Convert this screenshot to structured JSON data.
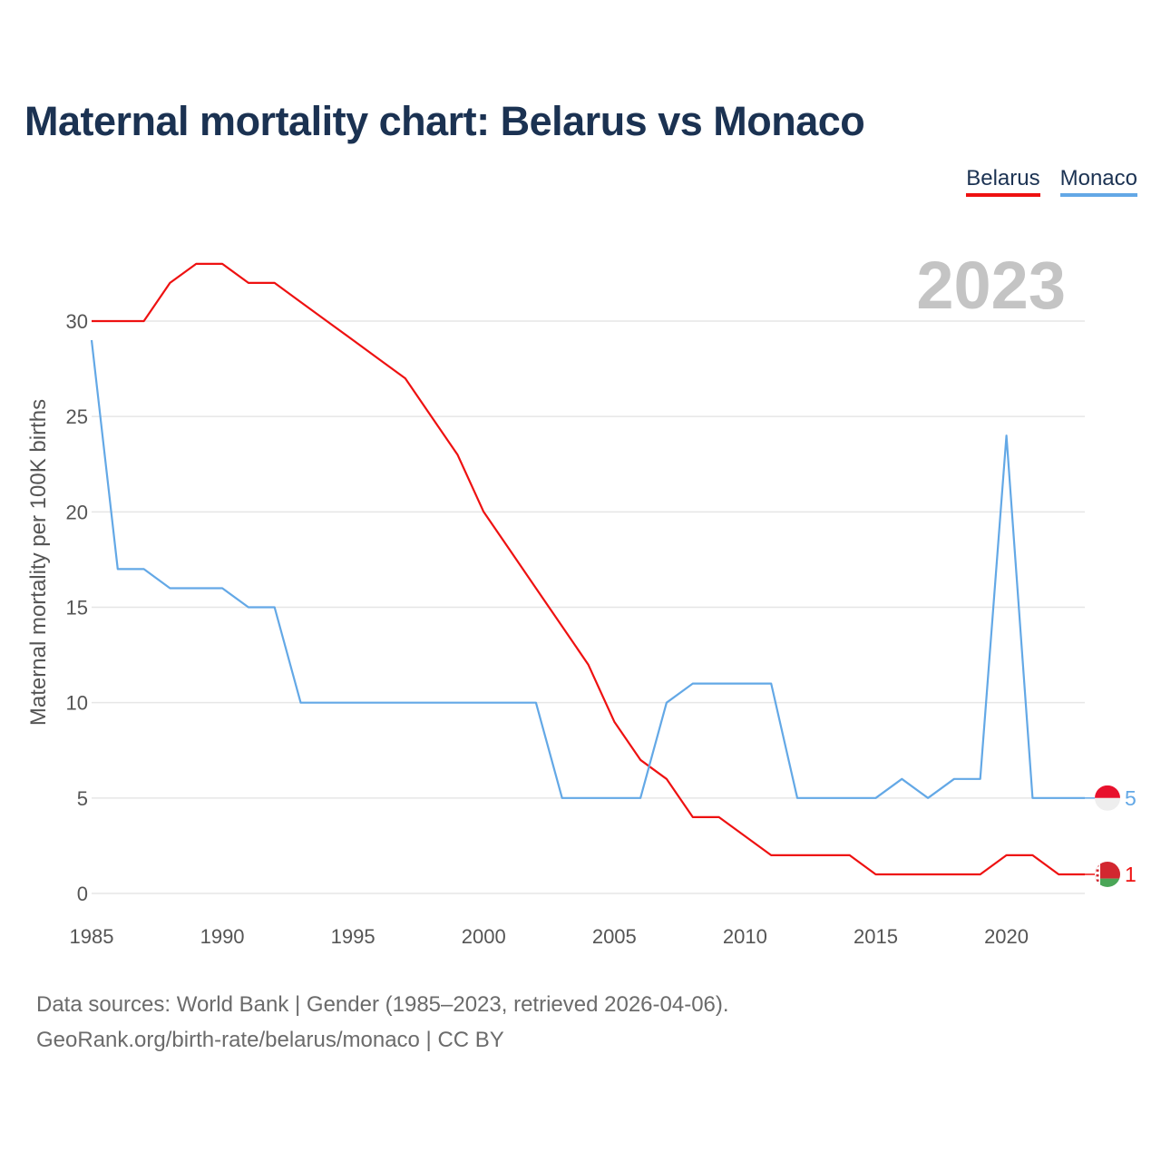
{
  "title": "Maternal mortality chart: Belarus vs Monaco",
  "legend": [
    {
      "label": "Belarus",
      "color": "#ee1111"
    },
    {
      "label": "Monaco",
      "color": "#63a8e6"
    }
  ],
  "year_watermark": "2023",
  "source": {
    "line1": "Data sources: World Bank | Gender (1985–2023, retrieved 2026-04-06).",
    "line2": "GeoRank.org/birth-rate/belarus/monaco | CC BY"
  },
  "chart_data": {
    "type": "line",
    "title": "Maternal mortality chart: Belarus vs Monaco",
    "xlabel": "",
    "ylabel": "Maternal mortality per 100K births",
    "xlim": [
      1985,
      2023
    ],
    "ylim": [
      0,
      30
    ],
    "grid": true,
    "legend_position": "top-right",
    "x_ticks": [
      1985,
      1990,
      1995,
      2000,
      2005,
      2010,
      2015,
      2020
    ],
    "y_ticks": [
      0,
      5,
      10,
      15,
      20,
      25,
      30
    ],
    "x": [
      1985,
      1986,
      1987,
      1988,
      1989,
      1990,
      1991,
      1992,
      1993,
      1994,
      1995,
      1996,
      1997,
      1998,
      1999,
      2000,
      2001,
      2002,
      2003,
      2004,
      2005,
      2006,
      2007,
      2008,
      2009,
      2010,
      2011,
      2012,
      2013,
      2014,
      2015,
      2016,
      2017,
      2018,
      2019,
      2020,
      2021,
      2022,
      2023
    ],
    "series": [
      {
        "name": "Belarus",
        "color": "#ee1111",
        "end_label": "1",
        "flag": "belarus",
        "values": [
          30,
          30,
          30,
          32,
          33,
          33,
          32,
          32,
          31,
          30,
          29,
          28,
          27,
          25,
          23,
          20,
          18,
          16,
          14,
          12,
          9,
          7,
          6,
          4,
          4,
          3,
          2,
          2,
          2,
          2,
          1,
          1,
          1,
          1,
          1,
          2,
          2,
          1,
          1
        ]
      },
      {
        "name": "Monaco",
        "color": "#63a8e6",
        "end_label": "5",
        "flag": "monaco",
        "values": [
          29,
          17,
          17,
          16,
          16,
          16,
          15,
          15,
          10,
          10,
          10,
          10,
          10,
          10,
          10,
          10,
          10,
          10,
          5,
          5,
          5,
          5,
          10,
          11,
          11,
          11,
          11,
          5,
          5,
          5,
          5,
          6,
          5,
          6,
          6,
          24,
          5,
          5,
          5
        ]
      }
    ]
  }
}
